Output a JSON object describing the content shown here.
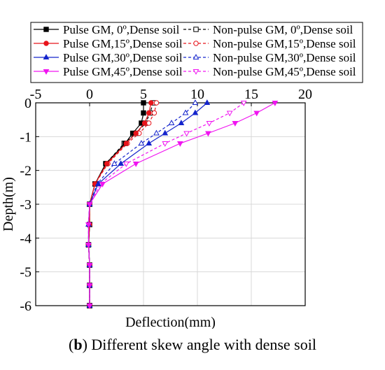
{
  "caption": {
    "label": "b",
    "text": ") Different skew angle with dense soil"
  },
  "chart_data": {
    "type": "line",
    "xlabel": "Deflection(mm)",
    "ylabel": "Depth(m)",
    "xlim": [
      -5,
      20
    ],
    "ylim": [
      -6,
      0
    ],
    "x_ticks": [
      -5,
      0,
      5,
      10,
      15,
      20
    ],
    "y_ticks": [
      0,
      -1,
      -2,
      -3,
      -4,
      -5,
      -6
    ],
    "x_axis_position": "top",
    "grid": true,
    "legend_position": "top",
    "series": [
      {
        "name": "Pulse GM,  0º,Dense soil",
        "color": "#000000",
        "marker": "square",
        "filled": true,
        "dashed": false,
        "x": [
          5.0,
          5.0,
          4.8,
          4.0,
          3.3,
          1.5,
          0.5,
          0.0,
          0.0,
          -0.1,
          0.0,
          0.0,
          0.0,
          0.0
        ],
        "y": [
          0,
          -0.3,
          -0.6,
          -0.9,
          -1.2,
          -1.8,
          -2.4,
          -3.0,
          -3.6,
          -4.2,
          -4.8,
          -5.4,
          -6.0,
          -6.0
        ]
      },
      {
        "name": "Pulse GM,15º,Dense soil",
        "color": "#e8141b",
        "marker": "circle",
        "filled": true,
        "dashed": false,
        "x": [
          5.7,
          5.5,
          5.1,
          4.3,
          3.4,
          1.6,
          0.5,
          0.0,
          0.0,
          -0.1,
          0.0,
          0.0,
          0.0
        ],
        "y": [
          0,
          -0.3,
          -0.6,
          -0.9,
          -1.2,
          -1.8,
          -2.4,
          -3.0,
          -3.6,
          -4.2,
          -4.8,
          -5.4,
          -6.0
        ]
      },
      {
        "name": "Pulse GM,30º,Dense soil",
        "color": "#1424cc",
        "marker": "triangle-up",
        "filled": true,
        "dashed": false,
        "x": [
          10.9,
          9.8,
          8.5,
          7.0,
          5.5,
          2.9,
          0.8,
          0.0,
          -0.1,
          -0.1,
          0.0,
          0.0,
          0.0
        ],
        "y": [
          0,
          -0.3,
          -0.6,
          -0.9,
          -1.2,
          -1.8,
          -2.4,
          -3.0,
          -3.6,
          -4.2,
          -4.8,
          -5.4,
          -6.0
        ]
      },
      {
        "name": "Pulse GM,45º,Dense soil",
        "color": "#f014f0",
        "marker": "triangle-down",
        "filled": true,
        "dashed": false,
        "x": [
          17.2,
          15.5,
          13.5,
          11.0,
          8.4,
          4.3,
          1.2,
          0.0,
          -0.1,
          -0.1,
          0.0,
          0.0,
          0.0
        ],
        "y": [
          0,
          -0.3,
          -0.6,
          -0.9,
          -1.2,
          -1.8,
          -2.4,
          -3.0,
          -3.6,
          -4.2,
          -4.8,
          -5.4,
          -6.0
        ]
      },
      {
        "name": "Non-pulse GM,  0º,Dense soil",
        "color": "#000000",
        "marker": "square",
        "filled": false,
        "dashed": true,
        "x": [
          5.9,
          5.6,
          5.2,
          4.3,
          3.2,
          1.5,
          0.5,
          0.0,
          0.0,
          -0.1,
          0.0,
          0.0,
          0.0
        ],
        "y": [
          0,
          -0.3,
          -0.6,
          -0.9,
          -1.2,
          -1.8,
          -2.4,
          -3.0,
          -3.6,
          -4.2,
          -4.8,
          -5.4,
          -6.0
        ]
      },
      {
        "name": "Non-pulse GM,15º,Dense soil",
        "color": "#e8141b",
        "marker": "circle",
        "filled": false,
        "dashed": true,
        "x": [
          6.2,
          6.0,
          5.5,
          4.6,
          3.5,
          1.7,
          0.5,
          0.0,
          0.0,
          -0.1,
          0.0,
          0.0,
          0.0
        ],
        "y": [
          0,
          -0.3,
          -0.6,
          -0.9,
          -1.2,
          -1.8,
          -2.4,
          -3.0,
          -3.6,
          -4.2,
          -4.8,
          -5.4,
          -6.0
        ]
      },
      {
        "name": "Non-pulse GM,30º,Dense soil",
        "color": "#1424cc",
        "marker": "triangle-up",
        "filled": false,
        "dashed": true,
        "x": [
          9.8,
          8.9,
          7.6,
          6.2,
          4.8,
          2.3,
          0.7,
          0.0,
          -0.1,
          -0.1,
          0.0,
          0.0,
          0.0
        ],
        "y": [
          0,
          -0.3,
          -0.6,
          -0.9,
          -1.2,
          -1.8,
          -2.4,
          -3.0,
          -3.6,
          -4.2,
          -4.8,
          -5.4,
          -6.0
        ]
      },
      {
        "name": "Non-pulse GM,45º,Dense soil",
        "color": "#f014f0",
        "marker": "triangle-down",
        "filled": false,
        "dashed": true,
        "x": [
          14.3,
          13.0,
          11.1,
          9.0,
          7.0,
          3.4,
          1.0,
          0.0,
          -0.1,
          -0.1,
          0.0,
          0.0,
          0.0
        ],
        "y": [
          0,
          -0.3,
          -0.6,
          -0.9,
          -1.2,
          -1.8,
          -2.4,
          -3.0,
          -3.6,
          -4.2,
          -4.8,
          -5.4,
          -6.0
        ]
      }
    ]
  }
}
